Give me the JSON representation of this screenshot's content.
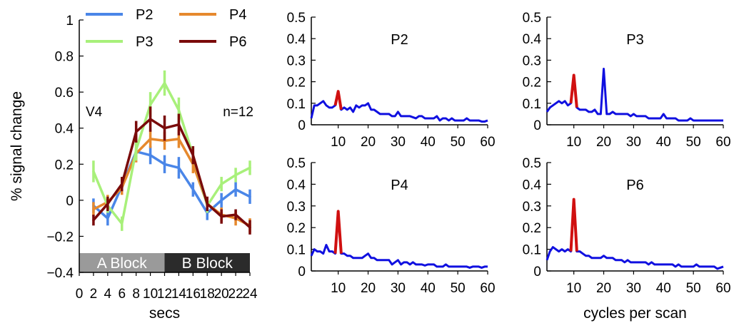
{
  "chart_data": [
    {
      "type": "line",
      "xlabel": "secs",
      "ylabel": "% signal change",
      "xlim": [
        0,
        24
      ],
      "ylim": [
        -0.4,
        1
      ],
      "xticks": [
        0,
        2,
        4,
        6,
        8,
        10,
        12,
        14,
        16,
        18,
        20,
        22,
        24
      ],
      "yticks": [
        -0.4,
        -0.2,
        0,
        0.2,
        0.4,
        0.6,
        0.8,
        1
      ],
      "ytick_labels": [
        "−0.4",
        "−0.2",
        "0",
        "0.2",
        "0.4",
        "0.6",
        "0.8",
        "1"
      ],
      "annotations": [
        "V4",
        "n=12"
      ],
      "blocks": [
        {
          "label": "A Block",
          "x": [
            0,
            12
          ],
          "color": "#9a9a9a"
        },
        {
          "label": "B Block",
          "x": [
            12,
            24
          ],
          "color": "#2b2b2b"
        }
      ],
      "legend_position": "top",
      "x": [
        2,
        4,
        6,
        8,
        10,
        12,
        14,
        16,
        18,
        20,
        22,
        24
      ],
      "series": [
        {
          "name": "P2",
          "color": "#4a86e8",
          "values": [
            -0.03,
            -0.1,
            0.08,
            0.27,
            0.25,
            0.2,
            0.18,
            0.06,
            -0.07,
            0.0,
            0.06,
            0.02
          ],
          "error": [
            0.04,
            0.04,
            0.04,
            0.04,
            0.05,
            0.05,
            0.06,
            0.04,
            0.04,
            0.04,
            0.04,
            0.04
          ]
        },
        {
          "name": "P4",
          "color": "#e6892d",
          "values": [
            -0.05,
            -0.01,
            0.07,
            0.26,
            0.34,
            0.33,
            0.34,
            0.2,
            -0.02,
            -0.08,
            -0.1,
            -0.14
          ],
          "error": [
            0.04,
            0.04,
            0.04,
            0.05,
            0.05,
            0.05,
            0.05,
            0.05,
            0.04,
            0.04,
            0.04,
            0.04
          ]
        },
        {
          "name": "P3",
          "color": "#a8f07a",
          "values": [
            0.16,
            -0.03,
            -0.13,
            0.28,
            0.53,
            0.65,
            0.5,
            0.25,
            -0.03,
            0.09,
            0.14,
            0.18
          ],
          "error": [
            0.06,
            0.04,
            0.04,
            0.06,
            0.07,
            0.07,
            0.07,
            0.05,
            0.04,
            0.04,
            0.04,
            0.04
          ]
        },
        {
          "name": "P6",
          "color": "#7a0a0a",
          "values": [
            -0.11,
            -0.02,
            0.09,
            0.38,
            0.45,
            0.4,
            0.42,
            0.25,
            -0.02,
            -0.09,
            -0.08,
            -0.15
          ],
          "error": [
            0.03,
            0.04,
            0.04,
            0.06,
            0.07,
            0.07,
            0.06,
            0.05,
            0.04,
            0.04,
            0.03,
            0.04
          ]
        }
      ]
    },
    {
      "type": "line",
      "title": "P2",
      "xlabel": "",
      "ylabel": "",
      "xlim": [
        1,
        60
      ],
      "ylim": [
        0,
        0.5
      ],
      "xticks": [
        10,
        20,
        30,
        40,
        50,
        60
      ],
      "yticks": [
        0,
        0.1,
        0.2,
        0.3,
        0.4,
        0.5
      ],
      "line_color": "#1010e0",
      "highlight_color": "#d01010",
      "highlight_x": [
        9,
        11
      ],
      "y": [
        0.03,
        0.09,
        0.09,
        0.1,
        0.11,
        0.09,
        0.08,
        0.08,
        0.09,
        0.155,
        0.07,
        0.08,
        0.07,
        0.08,
        0.06,
        0.09,
        0.08,
        0.09,
        0.09,
        0.1,
        0.07,
        0.07,
        0.06,
        0.05,
        0.05,
        0.05,
        0.05,
        0.04,
        0.04,
        0.06,
        0.04,
        0.04,
        0.04,
        0.04,
        0.035,
        0.03,
        0.04,
        0.04,
        0.03,
        0.03,
        0.03,
        0.03,
        0.04,
        0.02,
        0.03,
        0.03,
        0.02,
        0.03,
        0.02,
        0.02,
        0.02,
        0.02,
        0.03,
        0.02,
        0.02,
        0.02,
        0.02,
        0.015,
        0.015,
        0.02
      ]
    },
    {
      "type": "line",
      "title": "P3",
      "xlabel": "",
      "ylabel": "",
      "xlim": [
        1,
        60
      ],
      "ylim": [
        0,
        0.5
      ],
      "xticks": [
        10,
        20,
        30,
        40,
        50,
        60
      ],
      "yticks": [
        0,
        0.1,
        0.2,
        0.3,
        0.4,
        0.5
      ],
      "line_color": "#1010e0",
      "highlight_color": "#d01010",
      "highlight_x": [
        9,
        11
      ],
      "y": [
        0.06,
        0.08,
        0.09,
        0.1,
        0.11,
        0.1,
        0.11,
        0.09,
        0.1,
        0.23,
        0.08,
        0.07,
        0.07,
        0.07,
        0.06,
        0.06,
        0.07,
        0.05,
        0.05,
        0.26,
        0.05,
        0.05,
        0.06,
        0.05,
        0.05,
        0.05,
        0.05,
        0.05,
        0.04,
        0.05,
        0.04,
        0.04,
        0.04,
        0.04,
        0.03,
        0.03,
        0.03,
        0.03,
        0.03,
        0.05,
        0.03,
        0.03,
        0.03,
        0.03,
        0.02,
        0.02,
        0.02,
        0.02,
        0.03,
        0.02,
        0.02,
        0.02,
        0.02,
        0.02,
        0.02,
        0.02,
        0.02,
        0.02,
        0.02,
        0.02
      ]
    },
    {
      "type": "line",
      "title": "P4",
      "xlabel": "",
      "ylabel": "",
      "xlim": [
        1,
        60
      ],
      "ylim": [
        0,
        0.5
      ],
      "xticks": [
        10,
        20,
        30,
        40,
        50,
        60
      ],
      "yticks": [
        0,
        0.1,
        0.2,
        0.3,
        0.4,
        0.5
      ],
      "line_color": "#1010e0",
      "highlight_color": "#d01010",
      "highlight_x": [
        9,
        11
      ],
      "y": [
        0.07,
        0.1,
        0.09,
        0.09,
        0.08,
        0.12,
        0.09,
        0.09,
        0.08,
        0.275,
        0.08,
        0.08,
        0.07,
        0.07,
        0.06,
        0.06,
        0.06,
        0.06,
        0.07,
        0.08,
        0.06,
        0.06,
        0.05,
        0.05,
        0.05,
        0.05,
        0.05,
        0.03,
        0.04,
        0.05,
        0.03,
        0.04,
        0.04,
        0.03,
        0.04,
        0.03,
        0.03,
        0.03,
        0.025,
        0.03,
        0.03,
        0.03,
        0.02,
        0.02,
        0.02,
        0.03,
        0.02,
        0.02,
        0.02,
        0.02,
        0.02,
        0.02,
        0.02,
        0.015,
        0.02,
        0.02,
        0.02,
        0.015,
        0.02,
        0.02
      ]
    },
    {
      "type": "line",
      "title": "P6",
      "xlabel": "cycles per scan",
      "ylabel": "",
      "xlim": [
        1,
        60
      ],
      "ylim": [
        0,
        0.5
      ],
      "xticks": [
        10,
        20,
        30,
        40,
        50,
        60
      ],
      "yticks": [
        0,
        0.1,
        0.2,
        0.3,
        0.4,
        0.5
      ],
      "line_color": "#1010e0",
      "highlight_color": "#d01010",
      "highlight_x": [
        9,
        11
      ],
      "y": [
        0.05,
        0.09,
        0.11,
        0.1,
        0.09,
        0.1,
        0.09,
        0.1,
        0.09,
        0.33,
        0.09,
        0.09,
        0.08,
        0.07,
        0.07,
        0.06,
        0.06,
        0.06,
        0.06,
        0.07,
        0.06,
        0.06,
        0.06,
        0.05,
        0.05,
        0.05,
        0.04,
        0.05,
        0.04,
        0.04,
        0.04,
        0.04,
        0.04,
        0.04,
        0.03,
        0.04,
        0.03,
        0.03,
        0.03,
        0.03,
        0.03,
        0.03,
        0.03,
        0.02,
        0.03,
        0.02,
        0.02,
        0.02,
        0.02,
        0.02,
        0.03,
        0.02,
        0.02,
        0.02,
        0.02,
        0.02,
        0.02,
        0.01,
        0.015,
        0.02
      ]
    }
  ]
}
